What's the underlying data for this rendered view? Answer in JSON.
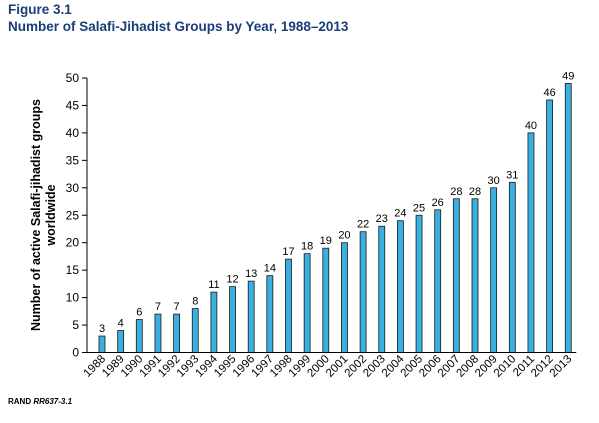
{
  "figure": {
    "label": "Figure 3.1",
    "title": "Number of Salafi-Jihadist Groups by Year, 1988–2013",
    "source_prefix": "RAND ",
    "source_id": "RR637-3.1"
  },
  "chart_data": {
    "type": "bar",
    "title": "Number of Salafi-Jihadist Groups by Year, 1988–2013",
    "xlabel": "",
    "ylabel_lines": [
      "Number of active Salafi-jihadist groups",
      "worldwide"
    ],
    "categories": [
      "1988",
      "1989",
      "1990",
      "1991",
      "1992",
      "1993",
      "1994",
      "1995",
      "1996",
      "1997",
      "1998",
      "1999",
      "2000",
      "2001",
      "2002",
      "2003",
      "2004",
      "2005",
      "2006",
      "2007",
      "2008",
      "2009",
      "2010",
      "2011",
      "2012",
      "2013"
    ],
    "values": [
      3,
      4,
      6,
      7,
      7,
      8,
      11,
      12,
      13,
      14,
      17,
      18,
      19,
      20,
      22,
      23,
      24,
      25,
      26,
      28,
      28,
      30,
      31,
      40,
      46,
      49
    ],
    "ylim": [
      0,
      50
    ],
    "yticks": [
      0,
      5,
      10,
      15,
      20,
      25,
      30,
      35,
      40,
      45,
      50
    ],
    "grid": false,
    "legend": "none",
    "bar_color": "#3ab0e0",
    "bar_edge_color": "#1a1a1a"
  }
}
